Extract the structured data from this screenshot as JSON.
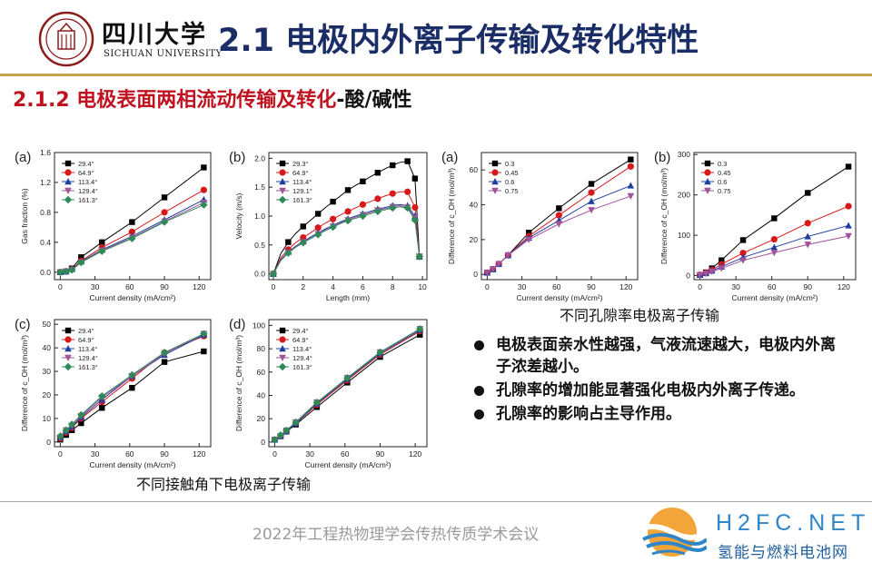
{
  "header": {
    "university_cn": "四川大学",
    "university_en": "SICHUAN UNIVERSITY",
    "title": "2.1 电极内外离子传输及转化特性"
  },
  "subtitle": {
    "red": "2.1.2 电极表面两相流动传输及转化",
    "black": "-酸/碱性"
  },
  "captions": {
    "porosity": "不同孔隙率电极离子传输",
    "contact_angle": "不同接触角下电极离子传输"
  },
  "bullets": [
    "电极表面亲水性越强，气液流速越大，电极内外离子浓差越小。",
    "孔隙率的增加能显著强化电极内外离子传递。",
    "孔隙率的影响占主导作用。"
  ],
  "footer": {
    "conference": "2022年工程热物理学会传热传质学术会议",
    "site": "H2FC.NET",
    "site_cn": "氢能与燃料电池网"
  },
  "colors": {
    "title": "#1a2d66",
    "subtitle_red": "#c1121f",
    "site": "#2e86c8"
  },
  "chart_data": [
    {
      "id": "angle-a",
      "panel": "(a)",
      "type": "line",
      "xlabel": "Current density (mA/cm²)",
      "ylabel": "Gas fraction (%)",
      "xlim": [
        -5,
        130
      ],
      "ylim": [
        -0.1,
        1.6
      ],
      "xticks": [
        "0",
        "30",
        "60",
        "90",
        "120"
      ],
      "yticks": [
        "0.0",
        "0.4",
        "0.8",
        "1.2",
        "1.6"
      ],
      "x": [
        0,
        5,
        10,
        18,
        36,
        62,
        90,
        124
      ],
      "series": [
        {
          "name": "29.4°",
          "color": "#000000",
          "marker": "square",
          "values": [
            0,
            0.01,
            0.05,
            0.2,
            0.4,
            0.67,
            1.0,
            1.4
          ]
        },
        {
          "name": "64.9°",
          "color": "#d7191c",
          "marker": "circle",
          "values": [
            0,
            0.01,
            0.04,
            0.15,
            0.33,
            0.54,
            0.8,
            1.1
          ]
        },
        {
          "name": "113.4°",
          "color": "#2040a0",
          "marker": "triangle",
          "values": [
            0,
            0.01,
            0.04,
            0.14,
            0.3,
            0.48,
            0.7,
            0.97
          ]
        },
        {
          "name": "129.4°",
          "color": "#a0529b",
          "marker": "tri-down",
          "values": [
            0,
            0.01,
            0.03,
            0.13,
            0.29,
            0.46,
            0.68,
            0.93
          ]
        },
        {
          "name": "161.3°",
          "color": "#2e8b57",
          "marker": "diamond",
          "values": [
            0,
            0.01,
            0.03,
            0.13,
            0.28,
            0.45,
            0.67,
            0.9
          ]
        }
      ]
    },
    {
      "id": "angle-b",
      "panel": "(b)",
      "type": "line",
      "xlabel": "Length (mm)",
      "ylabel": "Velocity (m/s)",
      "xlim": [
        -0.3,
        10.3
      ],
      "ylim": [
        -0.1,
        2.1
      ],
      "xticks": [
        "0",
        "2",
        "4",
        "6",
        "8",
        "10"
      ],
      "yticks": [
        "0.0",
        "0.5",
        "1.0",
        "1.5",
        "2.0"
      ],
      "x": [
        0,
        0.5,
        1,
        1.5,
        2,
        2.5,
        3,
        3.5,
        4,
        4.5,
        5,
        5.5,
        6,
        6.5,
        7,
        7.5,
        8,
        8.5,
        9,
        9.5,
        9.8
      ],
      "series": [
        {
          "name": "29.3°",
          "color": "#000000",
          "marker": "square",
          "values": [
            0,
            0.35,
            0.55,
            0.7,
            0.82,
            0.93,
            1.04,
            1.15,
            1.25,
            1.35,
            1.45,
            1.53,
            1.6,
            1.68,
            1.75,
            1.82,
            1.88,
            1.93,
            1.95,
            1.65,
            0.3
          ]
        },
        {
          "name": "64.9°",
          "color": "#d7191c",
          "marker": "circle",
          "values": [
            0,
            0.28,
            0.42,
            0.54,
            0.63,
            0.71,
            0.8,
            0.88,
            0.95,
            1.02,
            1.08,
            1.14,
            1.2,
            1.25,
            1.3,
            1.35,
            1.39,
            1.42,
            1.42,
            1.15,
            0.3
          ]
        },
        {
          "name": "113.4°",
          "color": "#2040a0",
          "marker": "triangle",
          "values": [
            0,
            0.25,
            0.38,
            0.48,
            0.56,
            0.64,
            0.71,
            0.78,
            0.84,
            0.9,
            0.95,
            1.0,
            1.04,
            1.08,
            1.12,
            1.15,
            1.18,
            1.2,
            1.18,
            1.0,
            0.3
          ]
        },
        {
          "name": "129.1°",
          "color": "#a0529b",
          "marker": "tri-down",
          "values": [
            0,
            0.24,
            0.37,
            0.47,
            0.55,
            0.62,
            0.69,
            0.76,
            0.82,
            0.88,
            0.93,
            0.98,
            1.02,
            1.06,
            1.1,
            1.13,
            1.16,
            1.18,
            1.15,
            0.97,
            0.3
          ]
        },
        {
          "name": "161.3°",
          "color": "#2e8b57",
          "marker": "diamond",
          "values": [
            0,
            0.23,
            0.36,
            0.46,
            0.54,
            0.61,
            0.68,
            0.75,
            0.81,
            0.87,
            0.92,
            0.96,
            1.0,
            1.04,
            1.08,
            1.11,
            1.14,
            1.16,
            1.14,
            0.93,
            0.3
          ]
        }
      ]
    },
    {
      "id": "angle-c",
      "panel": "(c)",
      "type": "line",
      "xlabel": "Current density (mA/cm²)",
      "ylabel": "Difference of c_OH (mol/m³)",
      "xlim": [
        -5,
        130
      ],
      "ylim": [
        -2,
        52
      ],
      "xticks": [
        "0",
        "30",
        "60",
        "90",
        "120"
      ],
      "yticks": [
        "0",
        "10",
        "20",
        "30",
        "40",
        "50"
      ],
      "x": [
        0,
        5,
        10,
        18,
        36,
        62,
        90,
        124
      ],
      "series": [
        {
          "name": "29.4°",
          "color": "#000000",
          "marker": "square",
          "values": [
            1,
            3,
            5,
            8,
            14.5,
            23,
            34,
            38.5
          ]
        },
        {
          "name": "64.9°",
          "color": "#d7191c",
          "marker": "circle",
          "values": [
            1.5,
            4,
            6,
            10,
            17,
            27,
            38,
            45
          ]
        },
        {
          "name": "113.4°",
          "color": "#2040a0",
          "marker": "triangle",
          "values": [
            2,
            4.5,
            6.5,
            10.5,
            18,
            28,
            37,
            45.5
          ]
        },
        {
          "name": "129.4°",
          "color": "#a0529b",
          "marker": "tri-down",
          "values": [
            2,
            5,
            7,
            11,
            19,
            28,
            37.5,
            46
          ]
        },
        {
          "name": "161.3°",
          "color": "#2e8b57",
          "marker": "diamond",
          "values": [
            2.5,
            5,
            7.5,
            11.5,
            19.5,
            28.5,
            38,
            46
          ]
        }
      ]
    },
    {
      "id": "angle-d",
      "panel": "(d)",
      "type": "line",
      "xlabel": "Current density (mA/cm²)",
      "ylabel": "Difference of c_OH (mol/m³)",
      "xlim": [
        -5,
        130
      ],
      "ylim": [
        -4,
        105
      ],
      "xticks": [
        "0",
        "30",
        "60",
        "90",
        "120"
      ],
      "yticks": [
        "0",
        "20",
        "40",
        "60",
        "80",
        "100"
      ],
      "x": [
        0,
        5,
        10,
        18,
        36,
        62,
        90,
        124
      ],
      "series": [
        {
          "name": "29.4°",
          "color": "#000000",
          "marker": "square",
          "values": [
            2,
            5,
            9,
            15,
            30,
            51,
            73,
            92
          ]
        },
        {
          "name": "64.9°",
          "color": "#d7191c",
          "marker": "circle",
          "values": [
            2,
            5,
            9,
            16,
            32,
            53,
            75,
            95
          ]
        },
        {
          "name": "113.4°",
          "color": "#2040a0",
          "marker": "triangle",
          "values": [
            2,
            5,
            9,
            16,
            33,
            54,
            76,
            96
          ]
        },
        {
          "name": "129.4°",
          "color": "#a0529b",
          "marker": "tri-down",
          "values": [
            2,
            5,
            10,
            17,
            34,
            55,
            77,
            97
          ]
        },
        {
          "name": "161.3°",
          "color": "#2e8b57",
          "marker": "diamond",
          "values": [
            2,
            6,
            10,
            17,
            34,
            55,
            77,
            97
          ]
        }
      ]
    },
    {
      "id": "porosity-a",
      "panel": "(a)",
      "type": "line",
      "xlabel": "Current density (mA/cm²)",
      "ylabel": "Difference of c_OH (mol/m³)",
      "xlim": [
        -5,
        130
      ],
      "ylim": [
        -3,
        70
      ],
      "xticks": [
        "0",
        "30",
        "60",
        "90",
        "120"
      ],
      "yticks": [
        "0",
        "20",
        "40",
        "60"
      ],
      "x": [
        0,
        5,
        10,
        18,
        36,
        62,
        90,
        124
      ],
      "series": [
        {
          "name": "0.3",
          "color": "#000000",
          "marker": "square",
          "values": [
            1,
            3,
            6,
            11,
            24,
            38,
            52,
            66
          ]
        },
        {
          "name": "0.45",
          "color": "#d7191c",
          "marker": "circle",
          "values": [
            1,
            3,
            6,
            11,
            22,
            34,
            47,
            62
          ]
        },
        {
          "name": "0.6",
          "color": "#2040a0",
          "marker": "triangle",
          "values": [
            1,
            3,
            6,
            11,
            21,
            31,
            42,
            51
          ]
        },
        {
          "name": "0.75",
          "color": "#a0529b",
          "marker": "tri-down",
          "values": [
            1,
            3,
            6,
            11,
            20,
            29,
            37,
            45
          ]
        }
      ]
    },
    {
      "id": "porosity-b",
      "panel": "(b)",
      "type": "line",
      "xlabel": "Current density (mA/cm²)",
      "ylabel": "Difference of c_OH (mol/m³)",
      "xlim": [
        -5,
        130
      ],
      "ylim": [
        -10,
        305
      ],
      "xticks": [
        "0",
        "30",
        "60",
        "90",
        "120"
      ],
      "yticks": [
        "0",
        "100",
        "200",
        "300"
      ],
      "x": [
        0,
        5,
        10,
        18,
        36,
        62,
        90,
        124
      ],
      "series": [
        {
          "name": "0.3",
          "color": "#000000",
          "marker": "square",
          "values": [
            2,
            8,
            18,
            38,
            88,
            142,
            205,
            270
          ]
        },
        {
          "name": "0.45",
          "color": "#d7191c",
          "marker": "circle",
          "values": [
            2,
            7,
            14,
            28,
            56,
            90,
            130,
            172
          ]
        },
        {
          "name": "0.6",
          "color": "#2040a0",
          "marker": "triangle",
          "values": [
            2,
            6,
            12,
            22,
            45,
            70,
            97,
            124
          ]
        },
        {
          "name": "0.75",
          "color": "#a0529b",
          "marker": "tri-down",
          "values": [
            2,
            5,
            10,
            18,
            38,
            57,
            77,
            98
          ]
        }
      ]
    }
  ]
}
